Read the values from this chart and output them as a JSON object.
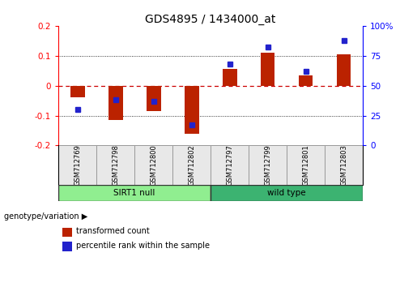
{
  "title": "GDS4895 / 1434000_at",
  "samples": [
    "GSM712769",
    "GSM712798",
    "GSM712800",
    "GSM712802",
    "GSM712797",
    "GSM712799",
    "GSM712801",
    "GSM712803"
  ],
  "red_values": [
    -0.04,
    -0.115,
    -0.085,
    -0.16,
    0.055,
    0.11,
    0.035,
    0.105
  ],
  "blue_values": [
    0.3,
    0.38,
    0.37,
    0.17,
    0.68,
    0.82,
    0.62,
    0.88
  ],
  "groups": [
    {
      "label": "SIRT1 null",
      "start": 0,
      "end": 4,
      "color": "#90EE90"
    },
    {
      "label": "wild type",
      "start": 4,
      "end": 8,
      "color": "#3CB371"
    }
  ],
  "ylim_left": [
    -0.2,
    0.2
  ],
  "yticks_left": [
    -0.2,
    -0.1,
    0.0,
    0.1,
    0.2
  ],
  "ytick_labels_left": [
    "-0.2",
    "-0.1",
    "0",
    "0.1",
    "0.2"
  ],
  "ytick_labels_right": [
    "0",
    "25",
    "50",
    "75",
    "100%"
  ],
  "bar_color": "#BB2200",
  "dot_color": "#2222CC",
  "zero_line_color": "#CC0000",
  "legend_red_label": "transformed count",
  "legend_blue_label": "percentile rank within the sample",
  "genotype_label": "genotype/variation",
  "title_fontsize": 10,
  "tick_fontsize": 7.5
}
